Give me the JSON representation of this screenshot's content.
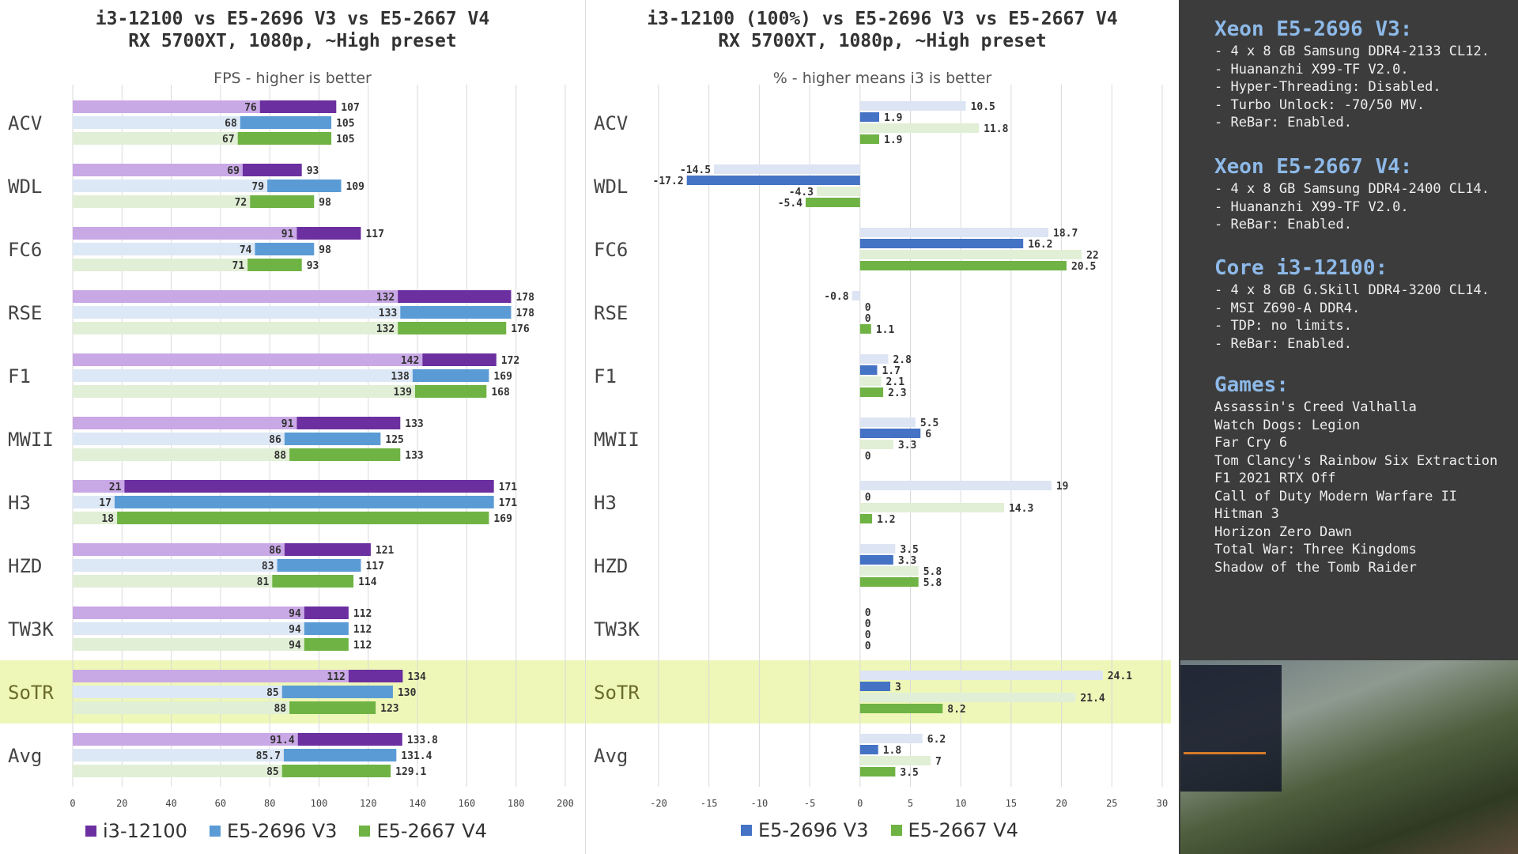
{
  "left_chart": {
    "title_line1": "i3-12100 vs E5-2696 V3 vs E5-2667 V4",
    "title_line2": "RX 5700XT, 1080p, ~High preset",
    "subtitle": "FPS - higher is better",
    "legend": [
      "i3-12100",
      "E5-2696 V3",
      "E5-2667 V4"
    ]
  },
  "mid_chart": {
    "title_line1": "i3-12100 (100%) vs E5-2696 V3 vs E5-2667 V4",
    "title_line2": "RX 5700XT, 1080p, ~High preset",
    "subtitle": "% - higher means i3 is better",
    "legend": [
      "E5-2696 V3",
      "E5-2667 V4"
    ]
  },
  "chart_data": [
    {
      "type": "bar",
      "orientation": "horizontal",
      "title": "i3-12100 vs E5-2696 V3 vs E5-2667 V4 / RX 5700XT, 1080p, ~High preset",
      "subtitle": "FPS - higher is better",
      "categories": [
        "ACV",
        "WDL",
        "FC6",
        "RSE",
        "F1",
        "MWII",
        "H3",
        "HZD",
        "TW3K",
        "SoTR",
        "Avg"
      ],
      "highlighted_category": "SoTR",
      "xlim": [
        0,
        200
      ],
      "x_ticks": [
        0,
        20,
        40,
        60,
        80,
        100,
        120,
        140,
        160,
        180,
        200
      ],
      "grid": true,
      "legend_position": "bottom",
      "series": [
        {
          "name": "i3-12100",
          "color": "#6b2fa0",
          "light_color": "#c9a8e6",
          "low": [
            76,
            69,
            91,
            132,
            142,
            91,
            21,
            86,
            94,
            112,
            91.4
          ],
          "avg": [
            107,
            93,
            117,
            178,
            172,
            133,
            171,
            121,
            112,
            134,
            133.8
          ]
        },
        {
          "name": "E5-2696 V3",
          "color": "#5b9bd5",
          "light_color": "#dde8f6",
          "low": [
            68,
            79,
            74,
            133,
            138,
            86,
            17,
            83,
            94,
            85,
            85.7
          ],
          "avg": [
            105,
            109,
            98,
            178,
            169,
            125,
            171,
            117,
            112,
            130,
            131.4
          ]
        },
        {
          "name": "E5-2667 V4",
          "color": "#6fb344",
          "light_color": "#e1efd6",
          "low": [
            67,
            72,
            71,
            132,
            139,
            88,
            18,
            81,
            94,
            88,
            85
          ],
          "avg": [
            105,
            98,
            93,
            176,
            168,
            133,
            169,
            114,
            112,
            123,
            129.1
          ]
        }
      ]
    },
    {
      "type": "bar",
      "orientation": "horizontal",
      "title": "i3-12100 (100%) vs E5-2696 V3 vs E5-2667 V4 / RX 5700XT, 1080p, ~High preset",
      "subtitle": "% - higher means i3 is better",
      "categories": [
        "ACV",
        "WDL",
        "FC6",
        "RSE",
        "F1",
        "MWII",
        "H3",
        "HZD",
        "TW3K",
        "SoTR",
        "Avg"
      ],
      "highlighted_category": "SoTR",
      "xlim": [
        -20,
        30
      ],
      "x_ticks": [
        -20,
        -15,
        -10,
        -5,
        0,
        5,
        10,
        15,
        20,
        25,
        30
      ],
      "grid": true,
      "legend_position": "bottom",
      "series": [
        {
          "name": "E5-2696 V3",
          "color": "#4472c4",
          "light_color": "#dde4f3",
          "low": [
            10.5,
            -14.5,
            18.7,
            -0.8,
            2.8,
            5.5,
            19,
            3.5,
            0,
            24.1,
            6.2
          ],
          "avg": [
            1.9,
            -17.2,
            16.2,
            0,
            1.7,
            6,
            0,
            3.3,
            0,
            3,
            1.8
          ]
        },
        {
          "name": "E5-2667 V4",
          "color": "#6fb344",
          "light_color": "#e1efd6",
          "low": [
            11.8,
            -4.3,
            22,
            0,
            2.1,
            3.3,
            14.3,
            5.8,
            0,
            21.4,
            7
          ],
          "avg": [
            1.9,
            -5.4,
            20.5,
            1.1,
            2.3,
            0,
            1.2,
            5.8,
            0,
            8.2,
            3.5
          ]
        }
      ]
    }
  ],
  "info": {
    "sections": [
      {
        "title": "Xeon E5-2696 V3:",
        "lines": [
          "- 4 x 8 GB Samsung DDR4-2133 CL12.",
          "- Huananzhi X99-TF V2.0.",
          "- Hyper-Threading: Disabled.",
          "- Turbo Unlock: -70/50 MV.",
          "- ReBar: Enabled."
        ]
      },
      {
        "title": "Xeon E5-2667 V4:",
        "lines": [
          "- 4 x 8 GB Samsung DDR4-2400 CL14.",
          "- Huananzhi X99-TF V2.0.",
          "- ReBar: Enabled."
        ]
      },
      {
        "title": "Core i3-12100:",
        "lines": [
          "- 4 x 8 GB G.Skill DDR4-3200 CL14.",
          "- MSI Z690-A DDR4.",
          "- TDP: no limits.",
          "- ReBar: Enabled."
        ]
      },
      {
        "title": "Games:",
        "lines": [
          "Assassin's Creed Valhalla",
          "Watch Dogs: Legion",
          "Far Cry 6",
          "Tom Clancy's Rainbow Six Extraction",
          "F1 2021 RTX Off",
          "Call of Duty Modern Warfare II",
          "Hitman 3",
          "Horizon Zero Dawn",
          "Total War: Three Kingdoms",
          "Shadow of the Tomb Raider"
        ]
      }
    ]
  },
  "colors": {
    "highlight": "#eef7b8",
    "panel_bg": "#3c3c3c",
    "heading": "#8db9e8"
  }
}
